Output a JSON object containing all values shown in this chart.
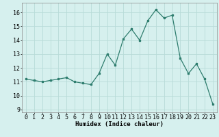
{
  "x": [
    0,
    1,
    2,
    3,
    4,
    5,
    6,
    7,
    8,
    9,
    10,
    11,
    12,
    13,
    14,
    15,
    16,
    17,
    18,
    19,
    20,
    21,
    22,
    23
  ],
  "y": [
    11.2,
    11.1,
    11.0,
    11.1,
    11.2,
    11.3,
    11.0,
    10.9,
    10.8,
    11.6,
    13.0,
    12.2,
    14.1,
    14.8,
    14.0,
    15.4,
    16.2,
    15.6,
    15.8,
    12.7,
    11.6,
    12.3,
    11.2,
    9.4
  ],
  "line_color": "#2e7d6e",
  "bg_color": "#d6f0ee",
  "grid_color": "#b8dbd8",
  "xlabel": "Humidex (Indice chaleur)",
  "ylim": [
    8.8,
    16.7
  ],
  "xlim": [
    -0.5,
    23.5
  ],
  "yticks": [
    9,
    10,
    11,
    12,
    13,
    14,
    15,
    16
  ],
  "xticks": [
    0,
    1,
    2,
    3,
    4,
    5,
    6,
    7,
    8,
    9,
    10,
    11,
    12,
    13,
    14,
    15,
    16,
    17,
    18,
    19,
    20,
    21,
    22,
    23
  ],
  "label_fontsize": 6.5,
  "tick_fontsize": 6.0
}
